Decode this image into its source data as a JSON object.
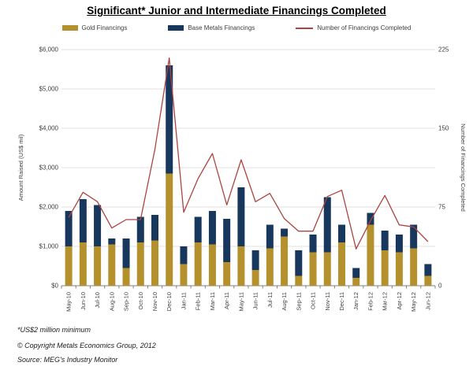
{
  "title": "Significant* Junior and Intermediate Financings Completed",
  "legend": {
    "gold": {
      "label": "Gold Financings",
      "color": "#B5912E"
    },
    "base_metals": {
      "label": "Base Metals Financings",
      "color": "#17375D"
    },
    "line": {
      "label": "Number of Financings Completed",
      "color": "#AC4441"
    }
  },
  "colors": {
    "gold_bar": "#B5912E",
    "base_metals_bar": "#17375D",
    "line": "#AC4441",
    "gridline": "#E0E0E0",
    "axis": "#808080",
    "tick_text": "#3F3F3F"
  },
  "chart_data": {
    "type": "combo-stacked-bar-line",
    "categories": [
      "May-10",
      "Jun-10",
      "Jul-10",
      "Aug-10",
      "Sep-10",
      "Oct-10",
      "Nov-10",
      "Dec-10",
      "Jan-11",
      "Feb-11",
      "Mar-11",
      "Apr-11",
      "May-11",
      "Jun-11",
      "Jul-11",
      "Aug-11",
      "Sep-11",
      "Oct-11",
      "Nov-11",
      "Dec-11",
      "Jan-12",
      "Feb-12",
      "Mar-12",
      "Apr-12",
      "May-12",
      "Jun-12"
    ],
    "series": [
      {
        "name": "Gold Financings",
        "type": "bar",
        "stack": "amount",
        "axis": "left",
        "values": [
          1000,
          1100,
          1000,
          1050,
          450,
          1100,
          1150,
          2850,
          550,
          1100,
          1050,
          600,
          1000,
          400,
          950,
          1250,
          250,
          850,
          850,
          1100,
          200,
          1550,
          900,
          850,
          950,
          250
        ]
      },
      {
        "name": "Base Metals Financings",
        "type": "bar",
        "stack": "amount",
        "axis": "left",
        "values": [
          900,
          1100,
          1050,
          150,
          750,
          650,
          650,
          2750,
          450,
          650,
          850,
          1100,
          1500,
          500,
          600,
          200,
          650,
          450,
          1400,
          450,
          250,
          300,
          500,
          450,
          600,
          300
        ]
      },
      {
        "name": "Number of Financings Completed",
        "type": "line",
        "axis": "right",
        "values": [
          65,
          89,
          80,
          55,
          63,
          63,
          130,
          217,
          70,
          102,
          126,
          77,
          120,
          80,
          88,
          64,
          52,
          52,
          85,
          91,
          35,
          62,
          86,
          58,
          56,
          42
        ]
      }
    ],
    "left_axis": {
      "label": "Amount Raised (US$ mil)",
      "min": 0,
      "max": 6000,
      "tick_step": 1000,
      "tick_labels": [
        "$0",
        "$1,000",
        "$2,000",
        "$3,000",
        "$4,000",
        "$5,000",
        "$6,000"
      ]
    },
    "right_axis": {
      "label": "Number of Financings Completed",
      "min": 0,
      "max": 225,
      "tick_step": 75,
      "tick_labels": [
        "0",
        "75",
        "150",
        "225"
      ]
    },
    "grid": true,
    "legend_position": "top"
  },
  "footnotes": [
    "*US$2 million minimum",
    "© Copyright Metals Economics Group, 2012",
    "Source: MEG's Industry Monitor"
  ]
}
